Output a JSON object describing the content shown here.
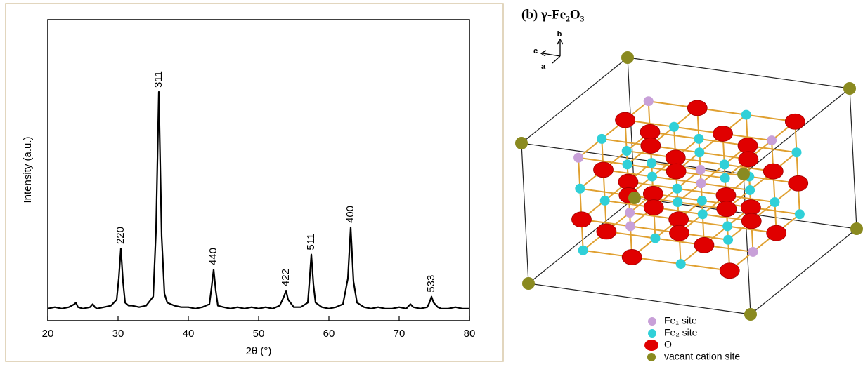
{
  "chart_data": {
    "type": "line",
    "x_label": "2θ (°)",
    "y_label": "Intensity (a.u.)",
    "xlim": [
      20,
      80
    ],
    "xticks": [
      20,
      30,
      40,
      50,
      60,
      70,
      80
    ],
    "ylim": [
      0,
      100
    ],
    "series": [
      {
        "color": "#000000",
        "x": [
          20,
          21,
          22,
          23,
          23.8,
          24,
          24.3,
          25,
          26,
          26.4,
          26.7,
          27,
          28,
          29,
          29.8,
          30.1,
          30.4,
          30.7,
          31,
          31.5,
          32,
          33,
          34,
          35,
          35.4,
          35.8,
          36.2,
          36.6,
          37,
          38,
          39,
          40,
          41,
          42,
          43,
          43.3,
          43.6,
          43.9,
          44.2,
          45,
          46,
          47,
          48,
          49,
          50,
          51,
          52,
          53,
          53.6,
          53.9,
          54.2,
          55,
          56,
          57,
          57.2,
          57.5,
          57.8,
          58.1,
          59,
          60,
          61,
          62,
          62.7,
          63.1,
          63.5,
          64,
          65,
          66,
          67,
          68,
          69,
          70,
          71,
          71.6,
          72,
          73,
          74,
          74.3,
          74.6,
          74.9,
          75.5,
          76,
          77,
          78,
          79,
          80
        ],
        "values": [
          4,
          4.5,
          4,
          4.5,
          5.5,
          6,
          4.5,
          4,
          4.5,
          5.5,
          4.5,
          4,
          4.5,
          5,
          7,
          14,
          24,
          13,
          6,
          5,
          5,
          4.5,
          5,
          8,
          30,
          76,
          28,
          9,
          6,
          5,
          4.5,
          4.5,
          4,
          4.5,
          5.5,
          11,
          17,
          10,
          5,
          4.5,
          4,
          4.5,
          4,
          4.5,
          4,
          4.5,
          4,
          5,
          8,
          10,
          7,
          4.5,
          4.5,
          6,
          12,
          22,
          12,
          6,
          4.5,
          4,
          4.5,
          5.5,
          14,
          31,
          13,
          6,
          4.5,
          4,
          4.5,
          4,
          4,
          4.5,
          4,
          5.5,
          4.5,
          4,
          4.5,
          6,
          8,
          6,
          4.5,
          4,
          4,
          4.5,
          4,
          4
        ]
      }
    ],
    "peak_labels": [
      {
        "label": "220",
        "x": 30.4,
        "y": 24
      },
      {
        "label": "311",
        "x": 35.8,
        "y": 76
      },
      {
        "label": "440",
        "x": 43.6,
        "y": 17
      },
      {
        "label": "422",
        "x": 53.9,
        "y": 10
      },
      {
        "label": "511",
        "x": 57.5,
        "y": 22
      },
      {
        "label": "400",
        "x": 63.1,
        "y": 31
      },
      {
        "label": "533",
        "x": 74.6,
        "y": 8
      }
    ]
  },
  "diagram": {
    "title": "(b) γ-Fe₂O₃",
    "axes": {
      "a": "a",
      "b": "b",
      "c": "c"
    },
    "legend": [
      "Fe₁ site",
      "Fe₂ site",
      "O",
      "vacant cation site"
    ]
  }
}
